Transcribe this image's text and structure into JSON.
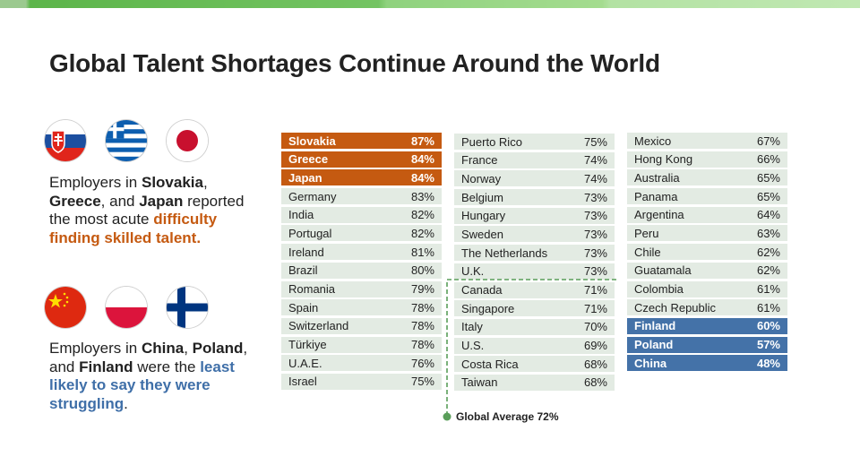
{
  "title": "Global Talent Shortages Continue Around the World",
  "colors": {
    "orange": "#c55a11",
    "blue": "#4472a8",
    "row": "#e3ebe3",
    "accent_green": "#5a9e5a"
  },
  "top_flags": [
    "slovakia-flag",
    "greece-flag",
    "japan-flag"
  ],
  "bottom_flags": [
    "china-flag",
    "poland-flag",
    "finland-flag"
  ],
  "blurb_top": {
    "t1": "Employers in ",
    "b1": "Slovakia",
    "t2": ", ",
    "b2": "Greece",
    "t3": ", and ",
    "b3": "Japan",
    "t4": " reported the most acute ",
    "highlight": "difficulty finding skilled talent."
  },
  "blurb_bottom": {
    "t1": "Employers in ",
    "b1": "China",
    "t2": ", ",
    "b2": "Poland",
    "t3": ", and ",
    "b3": "Finland",
    "t4": " were the ",
    "highlight": "least likely to say they were struggling",
    "t5": "."
  },
  "global_average": "Global Average 72%",
  "columns": [
    [
      {
        "name": "Slovakia",
        "value": "87%",
        "hl": "orange"
      },
      {
        "name": "Greece",
        "value": "84%",
        "hl": "orange"
      },
      {
        "name": "Japan",
        "value": "84%",
        "hl": "orange"
      },
      {
        "name": "Germany",
        "value": "83%"
      },
      {
        "name": "India",
        "value": "82%"
      },
      {
        "name": "Portugal",
        "value": "82%"
      },
      {
        "name": "Ireland",
        "value": "81%"
      },
      {
        "name": "Brazil",
        "value": "80%"
      },
      {
        "name": "Romania",
        "value": "79%"
      },
      {
        "name": "Spain",
        "value": "78%"
      },
      {
        "name": "Switzerland",
        "value": "78%"
      },
      {
        "name": "Türkiye",
        "value": "78%"
      },
      {
        "name": "U.A.E.",
        "value": "76%"
      },
      {
        "name": "Israel",
        "value": "75%"
      }
    ],
    [
      {
        "name": "Puerto Rico",
        "value": "75%"
      },
      {
        "name": "France",
        "value": "74%"
      },
      {
        "name": "Norway",
        "value": "74%"
      },
      {
        "name": "Belgium",
        "value": "73%"
      },
      {
        "name": "Hungary",
        "value": "73%"
      },
      {
        "name": "Sweden",
        "value": "73%"
      },
      {
        "name": "The Netherlands",
        "value": "73%"
      },
      {
        "name": "U.K.",
        "value": "73%"
      },
      {
        "name": "Canada",
        "value": "71%"
      },
      {
        "name": "Singapore",
        "value": "71%"
      },
      {
        "name": "Italy",
        "value": "70%"
      },
      {
        "name": "U.S.",
        "value": "69%"
      },
      {
        "name": "Costa Rica",
        "value": "68%"
      },
      {
        "name": "Taiwan",
        "value": "68%"
      }
    ],
    [
      {
        "name": "Mexico",
        "value": "67%"
      },
      {
        "name": "Hong Kong",
        "value": "66%"
      },
      {
        "name": "Australia",
        "value": "65%"
      },
      {
        "name": "Panama",
        "value": "65%"
      },
      {
        "name": "Argentina",
        "value": "64%"
      },
      {
        "name": "Peru",
        "value": "63%"
      },
      {
        "name": "Chile",
        "value": "62%"
      },
      {
        "name": "Guatamala",
        "value": "62%"
      },
      {
        "name": "Colombia",
        "value": "61%"
      },
      {
        "name": "Czech Republic",
        "value": "61%"
      },
      {
        "name": "Finland",
        "value": "60%",
        "hl": "blue"
      },
      {
        "name": "Poland",
        "value": "57%",
        "hl": "blue"
      },
      {
        "name": "China",
        "value": "48%",
        "hl": "blue"
      }
    ]
  ]
}
